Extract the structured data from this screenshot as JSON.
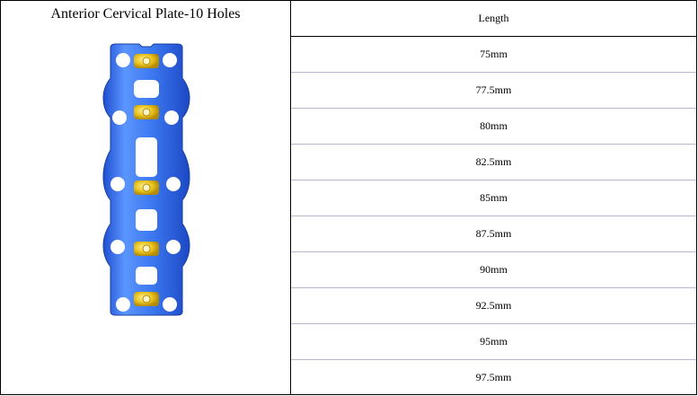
{
  "product": {
    "title": "Anterior Cervical Plate-10 Holes"
  },
  "table": {
    "header": "Length",
    "rows": [
      "75mm",
      "77.5mm",
      "80mm",
      "82.5mm",
      "85mm",
      "87.5mm",
      "90mm",
      "92.5mm",
      "95mm",
      "97.5mm"
    ]
  },
  "colors": {
    "plate_blue": "#2f6fe8",
    "lock_gold": "#e8c21a"
  }
}
